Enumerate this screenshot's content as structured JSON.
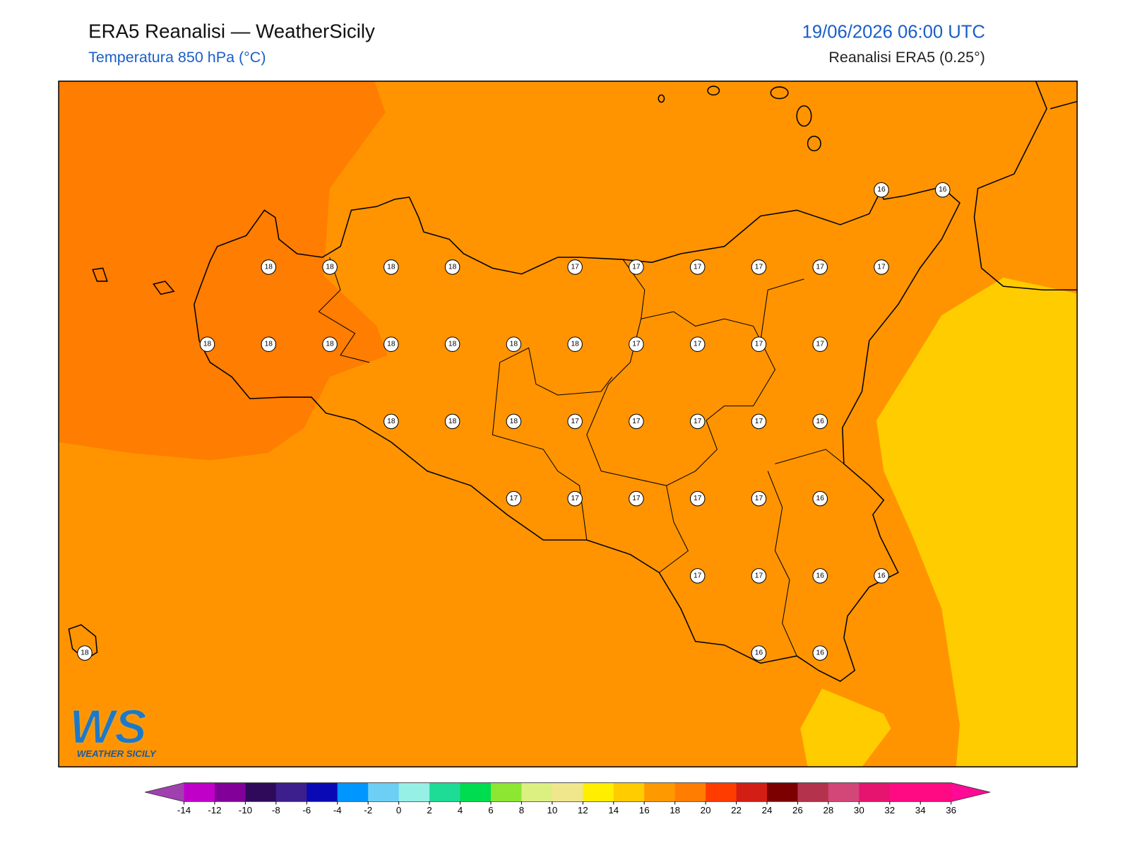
{
  "header": {
    "title": "ERA5 Reanalisi — WeatherSicily",
    "subtitle": "Temperatura 850 hPa (°C)",
    "datetime": "19/06/2026 06:00 UTC",
    "source": "Reanalisi ERA5 (0.25°)"
  },
  "stations": {
    "rows": [
      [
        null,
        null,
        null,
        null,
        null,
        null,
        null,
        null,
        null,
        null,
        null,
        null,
        null,
        16,
        16
      ],
      [
        null,
        null,
        null,
        18,
        18,
        18,
        18,
        null,
        17,
        17,
        17,
        17,
        17,
        17,
        null
      ],
      [
        null,
        null,
        18,
        18,
        18,
        18,
        18,
        18,
        18,
        17,
        17,
        17,
        17,
        null,
        null
      ],
      [
        null,
        null,
        null,
        null,
        null,
        18,
        18,
        18,
        17,
        17,
        17,
        17,
        16,
        null,
        null
      ],
      [
        null,
        null,
        null,
        null,
        null,
        null,
        null,
        17,
        17,
        17,
        17,
        17,
        16,
        null,
        null
      ],
      [
        null,
        null,
        null,
        null,
        null,
        null,
        null,
        null,
        null,
        null,
        17,
        17,
        16,
        16,
        null
      ],
      [
        18,
        null,
        null,
        null,
        null,
        null,
        null,
        null,
        null,
        null,
        null,
        16,
        16,
        null,
        null
      ]
    ]
  },
  "logo": {
    "mark": "WS",
    "text": "WEATHER SICILY"
  },
  "colorbar": {
    "ticks": [
      -14,
      -12,
      -10,
      -8,
      -6,
      -4,
      -2,
      0,
      2,
      4,
      6,
      8,
      10,
      12,
      14,
      16,
      18,
      20,
      22,
      24,
      26,
      28,
      30,
      32,
      34,
      36
    ],
    "colors": [
      "#c000c8",
      "#82009a",
      "#300a5a",
      "#3c1e8c",
      "#0a0ab4",
      "#0096ff",
      "#6ecff5",
      "#96f0e6",
      "#1edc96",
      "#00dc50",
      "#8ce632",
      "#dcf082",
      "#f0e68c",
      "#ffee00",
      "#ffcc00",
      "#ff9900",
      "#ff7d00",
      "#ff3c00",
      "#d21e14",
      "#7d0000",
      "#b4324b",
      "#d24678",
      "#e6146e",
      "#ff0a82",
      "#ff0a82"
    ],
    "under": "#a040b0",
    "over": "#ff0a96"
  }
}
